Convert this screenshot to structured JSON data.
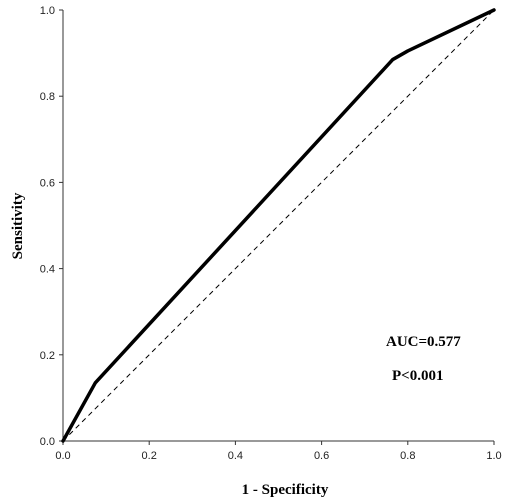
{
  "chart_data": {
    "type": "line",
    "title": "",
    "xlabel": "1 - Specificity",
    "ylabel": "Sensitivity",
    "xlim": [
      0.0,
      1.0
    ],
    "ylim": [
      0.0,
      1.0
    ],
    "grid": false,
    "x_ticks": [
      "0.0",
      "0.2",
      "0.4",
      "0.6",
      "0.8",
      "1.0"
    ],
    "y_ticks": [
      "0.0",
      "0.2",
      "0.4",
      "0.6",
      "0.8",
      "1.0"
    ],
    "series": [
      {
        "style": "solid",
        "color": "#000000",
        "points": [
          {
            "x": 0.0,
            "y": 0.0
          },
          {
            "x": 0.075,
            "y": 0.135
          },
          {
            "x": 0.765,
            "y": 0.885
          },
          {
            "x": 0.8,
            "y": 0.905
          },
          {
            "x": 1.0,
            "y": 1.0
          }
        ]
      },
      {
        "style": "dashed",
        "color": "#000000",
        "points": [
          {
            "x": 0.0,
            "y": 0.0
          },
          {
            "x": 1.0,
            "y": 1.0
          }
        ]
      }
    ],
    "annotations": [
      "AUC=0.577",
      "P<0.001"
    ]
  }
}
